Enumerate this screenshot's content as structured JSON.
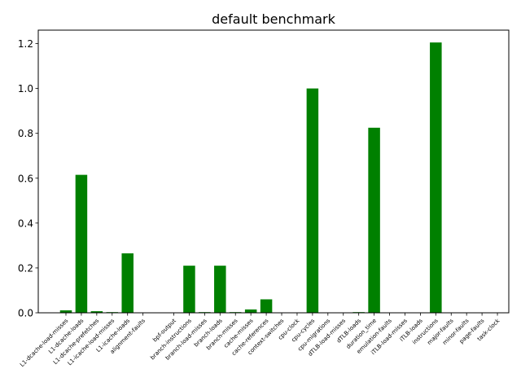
{
  "chart_data": {
    "type": "bar",
    "title": "default benchmark",
    "xlabel": "",
    "ylabel": "",
    "ylim": [
      0,
      1.26
    ],
    "yticks": [
      "0.0",
      "0.2",
      "0.4",
      "0.6",
      "0.8",
      "1.0",
      "1.2"
    ],
    "grid": false,
    "bar_color": "#008000",
    "categories": [
      "L1-dcache-load-misses",
      "L1-dcache-loads",
      "L1-dcache-prefetches",
      "L1-icache-load-misses",
      "L1-icache-loads",
      "alignment-faults",
      "bpf-output",
      "branch-instructions",
      "branch-load-misses",
      "branch-loads",
      "branch-misses",
      "cache-misses",
      "cache-references",
      "context-switches",
      "cpu-clock",
      "cpu-cycles",
      "cpu-migrations",
      "dTLB-load-misses",
      "dTLB-loads",
      "duration_time",
      "emulation-faults",
      "iTLB-load-misses",
      "iTLB-loads",
      "instructions",
      "major-faults",
      "minor-faults",
      "page-faults",
      "task-clock"
    ],
    "values": [
      0.011,
      0.615,
      0.007,
      0.003,
      0.265,
      0.0,
      0.0,
      0.21,
      0.003,
      0.21,
      0.003,
      0.015,
      0.06,
      0.0,
      0.0,
      1.0,
      0.0,
      0.0,
      0.003,
      0.825,
      0.0,
      0.0,
      0.0,
      1.205,
      0.0,
      0.0,
      0.0,
      0.0
    ],
    "bar_slots": [
      0,
      1,
      2,
      3,
      4,
      5,
      7,
      8,
      9,
      10,
      11,
      12,
      13,
      14,
      15,
      16,
      17,
      18,
      19,
      20,
      21,
      22,
      23,
      24,
      25,
      26,
      27,
      28
    ]
  }
}
